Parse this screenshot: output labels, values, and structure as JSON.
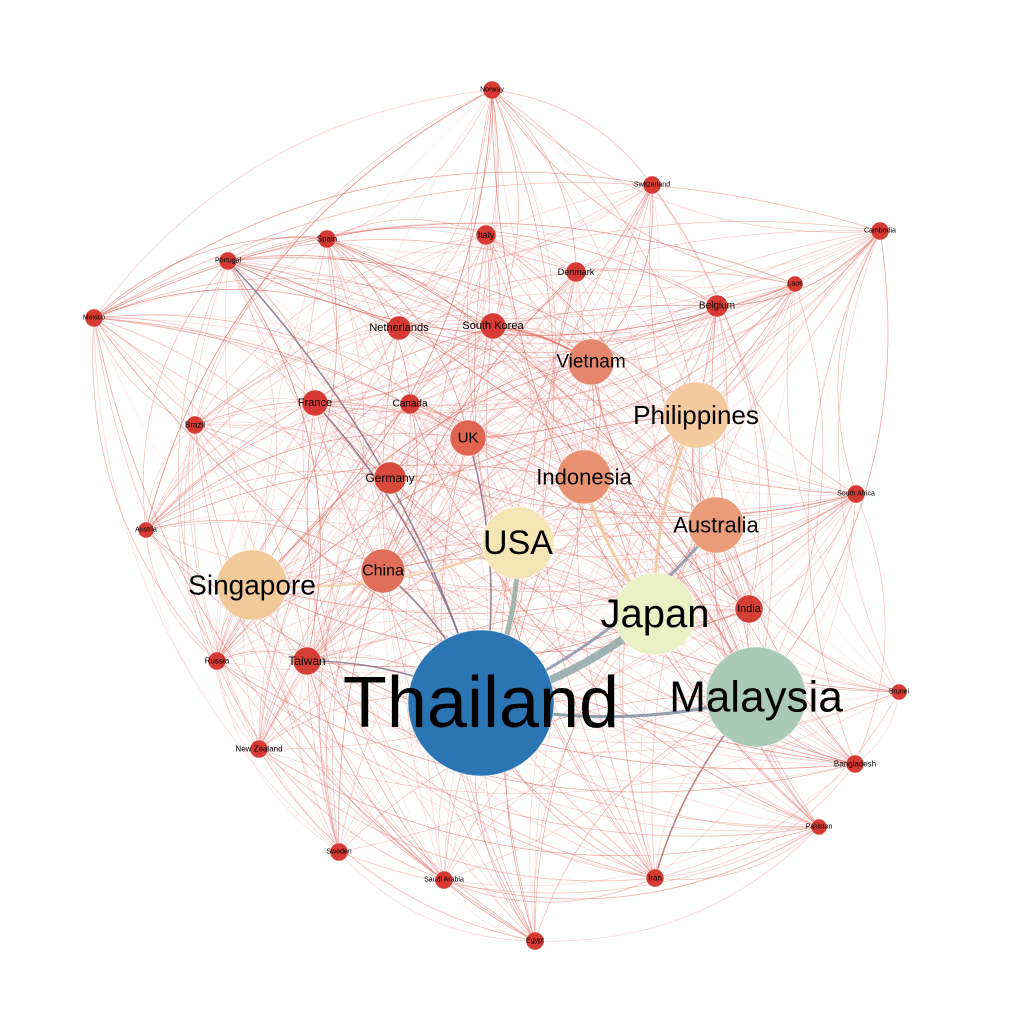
{
  "nodes": [
    {
      "id": "thailand",
      "label": "Thailand",
      "color": "#2b75b4"
    },
    {
      "id": "malaysia",
      "label": "Malaysia",
      "color": "#aac9b8"
    },
    {
      "id": "japan",
      "label": "Japan",
      "color": "#e9f1c5"
    },
    {
      "id": "usa",
      "label": "USA",
      "color": "#f6e5b4"
    },
    {
      "id": "singapore",
      "label": "Singapore",
      "color": "#f2c998"
    },
    {
      "id": "philippines",
      "label": "Philippines",
      "color": "#f3c99d"
    },
    {
      "id": "australia",
      "label": "Australia",
      "color": "#ea9b78"
    },
    {
      "id": "indonesia",
      "label": "Indonesia",
      "color": "#e99272"
    },
    {
      "id": "vietnam",
      "label": "Vietnam",
      "color": "#e4866b"
    },
    {
      "id": "china",
      "label": "China",
      "color": "#e06e58"
    },
    {
      "id": "uk",
      "label": "UK",
      "color": "#e06450"
    },
    {
      "id": "germany",
      "label": "Germany",
      "color": "#d84a3c"
    },
    {
      "id": "india",
      "label": "India",
      "color": "#d63f35"
    },
    {
      "id": "taiwan",
      "label": "Taiwan",
      "color": "#d63f35"
    },
    {
      "id": "france",
      "label": "France",
      "color": "#d63a32"
    },
    {
      "id": "south-korea",
      "label": "South Korea",
      "color": "#d63a32"
    },
    {
      "id": "netherlands",
      "label": "Netherlands",
      "color": "#d63a32"
    },
    {
      "id": "canada",
      "label": "Canada",
      "color": "#d63a32"
    },
    {
      "id": "belgium",
      "label": "Belgium",
      "color": "#d63a32"
    },
    {
      "id": "denmark",
      "label": "Denmark",
      "color": "#d63a32"
    },
    {
      "id": "italy",
      "label": "Italy",
      "color": "#d63a32"
    },
    {
      "id": "spain",
      "label": "Spain",
      "color": "#d63a32"
    },
    {
      "id": "portugal",
      "label": "Portugal",
      "color": "#d63a32"
    },
    {
      "id": "switzerland",
      "label": "Switzerland",
      "color": "#d63a32"
    },
    {
      "id": "norway",
      "label": "Norway",
      "color": "#d63a32"
    },
    {
      "id": "cambodia",
      "label": "Cambodia",
      "color": "#d63a32"
    },
    {
      "id": "laos",
      "label": "Laos",
      "color": "#d63a32"
    },
    {
      "id": "mexico",
      "label": "Mexico",
      "color": "#d63a32"
    },
    {
      "id": "brazil",
      "label": "Brazil",
      "color": "#d63a32"
    },
    {
      "id": "austria",
      "label": "Austria",
      "color": "#d63a32"
    },
    {
      "id": "russia",
      "label": "Russia",
      "color": "#d63a32"
    },
    {
      "id": "new-zealand",
      "label": "New Zealand",
      "color": "#d63a32"
    },
    {
      "id": "sweden",
      "label": "Sweden",
      "color": "#d63a32"
    },
    {
      "id": "saudi-arabia",
      "label": "Saudi Arabia",
      "color": "#d63a32"
    },
    {
      "id": "egypt",
      "label": "Egypt",
      "color": "#d63a32"
    },
    {
      "id": "iran",
      "label": "Iran",
      "color": "#d63a32"
    },
    {
      "id": "pakistan",
      "label": "Pakistan",
      "color": "#d63a32"
    },
    {
      "id": "bangladesh",
      "label": "Bangladesh",
      "color": "#d63a32"
    },
    {
      "id": "brunei",
      "label": "Brunei",
      "color": "#d63a32"
    },
    {
      "id": "south-africa",
      "label": "South Africa",
      "color": "#d63a32"
    }
  ],
  "strong_edges": [
    {
      "source": "thailand",
      "target": "japan",
      "color": "#8fa8a6"
    },
    {
      "source": "thailand",
      "target": "usa",
      "color": "#93aaa6"
    },
    {
      "source": "thailand",
      "target": "malaysia",
      "color": "#7d8fa0"
    },
    {
      "source": "thailand",
      "target": "australia",
      "color": "#8a93a8"
    },
    {
      "source": "thailand",
      "target": "china",
      "color": "#8a6f86"
    },
    {
      "source": "thailand",
      "target": "uk",
      "color": "#8a6f86"
    },
    {
      "source": "thailand",
      "target": "france",
      "color": "#8a6f86"
    },
    {
      "source": "thailand",
      "target": "taiwan",
      "color": "#8a6f86"
    },
    {
      "source": "thailand",
      "target": "portugal",
      "color": "#8a6f86"
    },
    {
      "source": "malaysia",
      "target": "iran",
      "color": "#b86a6a"
    },
    {
      "source": "indonesia",
      "target": "japan",
      "color": "#f0c59a"
    },
    {
      "source": "philippines",
      "target": "japan",
      "color": "#f0c59a"
    },
    {
      "source": "singapore",
      "target": "usa",
      "color": "#f2d0a0"
    },
    {
      "source": "vietnam",
      "target": "south-korea",
      "color": "#e5725f"
    }
  ]
}
